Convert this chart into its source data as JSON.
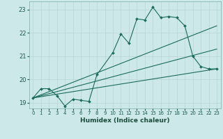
{
  "xlabel": "Humidex (Indice chaleur)",
  "ylabel": "",
  "bg_color": "#cce8e8",
  "line_color": "#1a6b5a",
  "grid_color": "#b8d4d4",
  "xlim": [
    -0.5,
    23.5
  ],
  "ylim": [
    18.75,
    23.35
  ],
  "yticks": [
    19,
    20,
    21,
    22,
    23
  ],
  "xticks": [
    0,
    1,
    2,
    3,
    4,
    5,
    6,
    7,
    8,
    9,
    10,
    11,
    12,
    13,
    14,
    15,
    16,
    17,
    18,
    19,
    20,
    21,
    22,
    23
  ],
  "series1_x": [
    0,
    1,
    2,
    3,
    4,
    5,
    6,
    7,
    8,
    10,
    11,
    12,
    13,
    14,
    15,
    16,
    17,
    18,
    19,
    20,
    21,
    22,
    23
  ],
  "series1_y": [
    19.2,
    19.6,
    19.6,
    19.3,
    18.85,
    19.15,
    19.1,
    19.05,
    20.2,
    21.15,
    21.95,
    21.55,
    22.6,
    22.55,
    23.1,
    22.65,
    22.7,
    22.65,
    22.3,
    21.0,
    20.55,
    20.45,
    20.45
  ],
  "series2_x": [
    0,
    23
  ],
  "series2_y": [
    19.2,
    20.45
  ],
  "series3_x": [
    0,
    23
  ],
  "series3_y": [
    19.2,
    22.3
  ],
  "series4_x": [
    0,
    23
  ],
  "series4_y": [
    19.2,
    21.3
  ]
}
